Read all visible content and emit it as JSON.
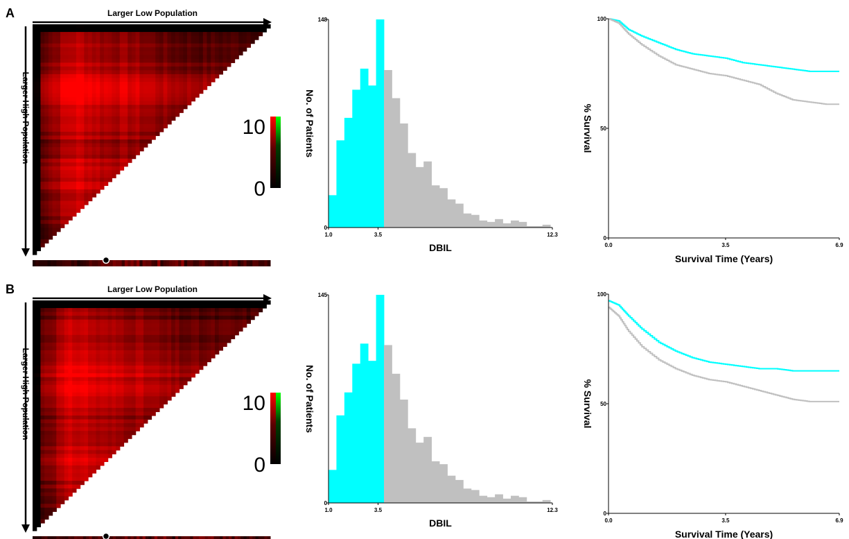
{
  "chart_data": [
    {
      "type": "heatmap",
      "panel_label": "A",
      "xlabel": "Larger Low Population",
      "ylabel": "Larger High Population",
      "colorbar": {
        "min_label": "0",
        "max_label": "10",
        "range": [
          0,
          10
        ]
      },
      "colors": {
        "low": "#000000",
        "high": "#ff0000",
        "bar_top": "#00ff00"
      }
    },
    {
      "type": "bar",
      "panel_label": "A",
      "xlabel": "DBIL",
      "ylabel": "No. of Patients",
      "x_ticks": [
        "1.0",
        "3.5",
        "12.3"
      ],
      "xlim": [
        1.0,
        12.3
      ],
      "ylim": [
        0,
        148
      ],
      "y_ticks": [
        "0",
        "148"
      ],
      "cutoff": 3.5,
      "bin_width": 0.4,
      "values": [
        23,
        62,
        78,
        98,
        113,
        101,
        148,
        112,
        92,
        74,
        53,
        43,
        47,
        30,
        28,
        20,
        17,
        10,
        9,
        5,
        4,
        6,
        3,
        5,
        4,
        1,
        1,
        2,
        0,
        0
      ],
      "colors": {
        "low": "#00ffff",
        "high": "#c0c0c0"
      }
    },
    {
      "type": "line",
      "panel_label": "A",
      "xlabel": "Survival Time (Years)",
      "ylabel": "% Survival",
      "x_ticks": [
        "0.0",
        "3.5",
        "6.9"
      ],
      "y_ticks": [
        "0",
        "50",
        "100"
      ],
      "xlim": [
        0,
        6.9
      ],
      "ylim": [
        0,
        100
      ],
      "series": [
        {
          "color": "#00ffff",
          "x": [
            0,
            0.3,
            0.6,
            1.0,
            1.5,
            2.0,
            2.5,
            3.0,
            3.5,
            4.0,
            4.5,
            5.0,
            5.5,
            6.0,
            6.5,
            6.9
          ],
          "y": [
            100,
            99,
            95,
            92,
            89,
            86,
            84,
            83,
            82,
            80,
            79,
            78,
            77,
            76,
            76,
            76
          ]
        },
        {
          "color": "#c0c0c0",
          "x": [
            0,
            0.3,
            0.6,
            1.0,
            1.5,
            2.0,
            2.5,
            3.0,
            3.5,
            4.0,
            4.5,
            5.0,
            5.5,
            6.0,
            6.5,
            6.9
          ],
          "y": [
            100,
            98,
            93,
            88,
            83,
            79,
            77,
            75,
            74,
            72,
            70,
            66,
            63,
            62,
            61,
            61
          ]
        }
      ]
    },
    {
      "type": "heatmap",
      "panel_label": "B",
      "xlabel": "Larger Low Population",
      "ylabel": "Larger High Population",
      "colorbar": {
        "min_label": "0",
        "max_label": "10",
        "range": [
          0,
          10
        ]
      },
      "colors": {
        "low": "#000000",
        "high": "#ff0000",
        "bar_top": "#00ff00"
      }
    },
    {
      "type": "bar",
      "panel_label": "B",
      "xlabel": "DBIL",
      "ylabel": "No. of Patients",
      "x_ticks": [
        "1.0",
        "3.5",
        "12.3"
      ],
      "xlim": [
        1.0,
        12.3
      ],
      "ylim": [
        0,
        145
      ],
      "y_ticks": [
        "0",
        "145"
      ],
      "cutoff": 3.5,
      "bin_width": 0.4,
      "values": [
        23,
        61,
        77,
        97,
        111,
        99,
        145,
        110,
        90,
        72,
        52,
        42,
        46,
        29,
        27,
        19,
        16,
        10,
        9,
        5,
        4,
        6,
        3,
        5,
        4,
        1,
        1,
        2,
        0,
        0
      ],
      "colors": {
        "low": "#00ffff",
        "high": "#c0c0c0"
      }
    },
    {
      "type": "line",
      "panel_label": "B",
      "xlabel": "Survival Time (Years)",
      "ylabel": "% Survival",
      "x_ticks": [
        "0.0",
        "3.5",
        "6.9"
      ],
      "y_ticks": [
        "0",
        "50",
        "100"
      ],
      "xlim": [
        0,
        6.9
      ],
      "ylim": [
        0,
        100
      ],
      "series": [
        {
          "color": "#00ffff",
          "x": [
            0,
            0.3,
            0.6,
            1.0,
            1.5,
            2.0,
            2.5,
            3.0,
            3.5,
            4.0,
            4.5,
            5.0,
            5.5,
            6.0,
            6.5,
            6.9
          ],
          "y": [
            97,
            95,
            90,
            84,
            78,
            74,
            71,
            69,
            68,
            67,
            66,
            66,
            65,
            65,
            65,
            65
          ]
        },
        {
          "color": "#c0c0c0",
          "x": [
            0,
            0.3,
            0.6,
            1.0,
            1.5,
            2.0,
            2.5,
            3.0,
            3.5,
            4.0,
            4.5,
            5.0,
            5.5,
            6.0,
            6.5,
            6.9
          ],
          "y": [
            94,
            90,
            83,
            76,
            70,
            66,
            63,
            61,
            60,
            58,
            56,
            54,
            52,
            51,
            51,
            51
          ]
        }
      ]
    }
  ]
}
